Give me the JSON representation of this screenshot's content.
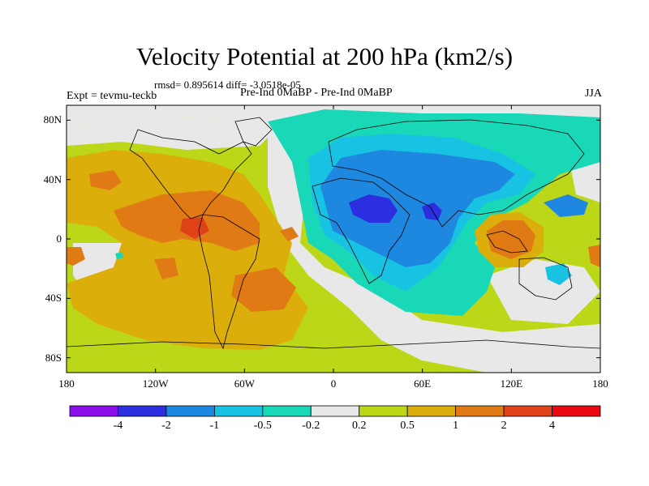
{
  "title": "Velocity Potential at 200 hPa (km2/s)",
  "stats": "rmsd= 0.895614  diff= -3.0518e-05",
  "experiment": "Expt = tevmu-teckb",
  "comparison": "Pre-Ind 0MaBP - Pre-Ind 0MaBP",
  "season": "JJA",
  "map": {
    "lon_range": [
      -180,
      180
    ],
    "lat_range": [
      -90,
      90
    ],
    "lat_ticks": [
      {
        "value": 80,
        "label": "80N"
      },
      {
        "value": 40,
        "label": "40N"
      },
      {
        "value": 0,
        "label": "0"
      },
      {
        "value": -40,
        "label": "40S"
      },
      {
        "value": -80,
        "label": "80S"
      }
    ],
    "lon_ticks": [
      {
        "value": -180,
        "label": "180"
      },
      {
        "value": -120,
        "label": "120W"
      },
      {
        "value": -60,
        "label": "60W"
      },
      {
        "value": 0,
        "label": "0"
      },
      {
        "value": 60,
        "label": "60E"
      },
      {
        "value": 120,
        "label": "120E"
      },
      {
        "value": 180,
        "label": "180"
      }
    ]
  },
  "colorbar": {
    "levels": [
      "-4",
      "-2",
      "-1",
      "-0.5",
      "-0.2",
      "0.2",
      "0.5",
      "1",
      "2",
      "4"
    ],
    "colors": [
      "#8b0fea",
      "#2b2fe0",
      "#1e88e0",
      "#18c2e2",
      "#18d8b8",
      "#e8e8e8",
      "#bcd618",
      "#dcae0c",
      "#e07a14",
      "#e04218",
      "#e80a10"
    ]
  }
}
